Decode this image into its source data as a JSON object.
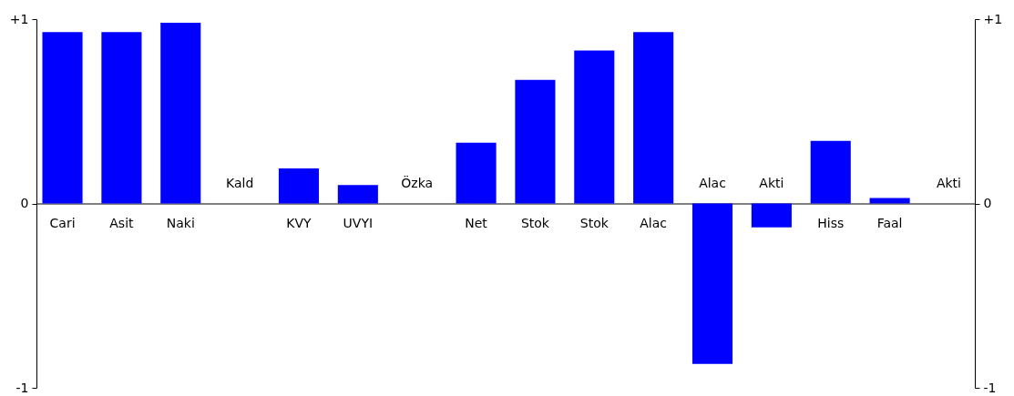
{
  "chart_data": {
    "type": "bar",
    "categories": [
      "Cari",
      "Asit",
      "Naki",
      "Kald",
      "KVY",
      "UVYI",
      "Özka",
      "Net",
      "Stok",
      "Stok",
      "Alac",
      "Alac",
      "Akti",
      "Hiss",
      "Faal",
      "Akti"
    ],
    "series": [
      {
        "color": "#0000ff",
        "values": [
          0.93,
          0.93,
          0.98,
          0,
          0.19,
          0.1,
          0,
          0.33,
          0.67,
          0.83,
          0.93,
          -0.87,
          -0.13,
          0.34,
          0.03,
          0
        ]
      }
    ],
    "ylim": [
      -1,
      1
    ],
    "yticks": [
      {
        "value": 1,
        "label": "+1"
      },
      0,
      -1
    ],
    "y2lim": [
      -1,
      1
    ],
    "y2ticks": [
      {
        "value": 1,
        "label": "+1"
      },
      0,
      -1
    ]
  }
}
